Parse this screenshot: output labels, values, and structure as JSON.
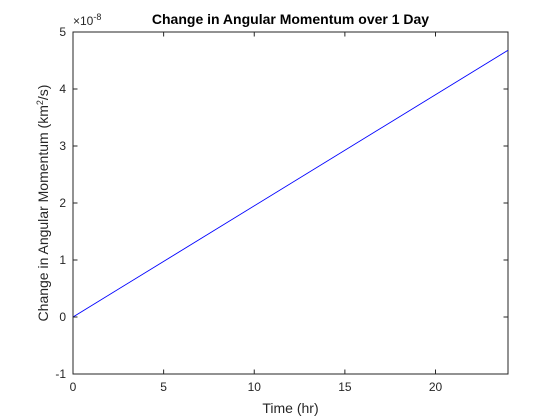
{
  "chart_data": {
    "type": "line",
    "title": "Change in Angular Momentum over 1 Day",
    "xlabel": "Time (hr)",
    "ylabel_main": "Change in Angular Momentum (km",
    "ylabel_sup": "2",
    "ylabel_tail": "/s)",
    "y_exponent_prefix": "×10",
    "y_exponent_power": "-8",
    "xlim": [
      0,
      24
    ],
    "ylim": [
      -1,
      5
    ],
    "xticks": [
      0,
      5,
      10,
      15,
      20
    ],
    "yticks": [
      -1,
      0,
      1,
      2,
      3,
      4,
      5
    ],
    "grid": false,
    "series": [
      {
        "color": "#0000ff",
        "x": [
          0,
          24
        ],
        "y": [
          0,
          4.68
        ]
      }
    ]
  }
}
